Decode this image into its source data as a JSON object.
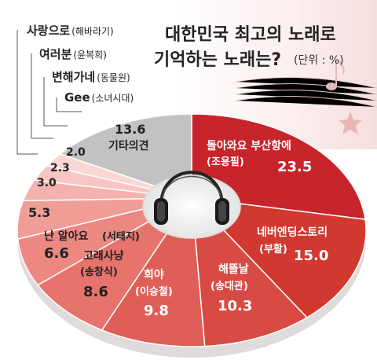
{
  "header": {
    "title_line1": "대한민국 최고의 노래로",
    "title_line2": "기억하는 노래는?",
    "unit": "(단위 : %)"
  },
  "chart_data": {
    "type": "pie",
    "title": "대한민국 최고의 노래로 기억하는 노래는?",
    "unit": "%",
    "slices": [
      {
        "name": "돌아와요 부산항에",
        "artist": "(조용필)",
        "value": 23.5,
        "color": "#c8242b"
      },
      {
        "name": "네버엔딩스토리",
        "artist": "(부활)",
        "value": 15.0,
        "color": "#d03830"
      },
      {
        "name": "해뜰날",
        "artist": "(송대관)",
        "value": 10.3,
        "color": "#d84b44"
      },
      {
        "name": "희야",
        "artist": "(이승철)",
        "value": 9.8,
        "color": "#df5e57"
      },
      {
        "name": "고래사냥",
        "artist": "(송창식)",
        "value": 8.6,
        "color": "#e6736c"
      },
      {
        "name": "난 알아요",
        "artist": "(서태지)",
        "value": 6.6,
        "color": "#ec8882"
      },
      {
        "name": "",
        "artist": "",
        "value": 5.3,
        "color": "#f09d98"
      },
      {
        "name": "Gee",
        "artist": "(소녀시대)",
        "value": 3.0,
        "color": "#f4b2ae"
      },
      {
        "name": "변해가네",
        "artist": "(동물원)",
        "value": 2.3,
        "color": "#f7c6c3"
      },
      {
        "name": "여러분",
        "artist": "(윤복희)",
        "value": 2.0,
        "color": "#f9d7d5"
      },
      {
        "name": "사랑으로",
        "artist": "(해바라기)",
        "value": 0.0,
        "color": "#fbe6e5"
      },
      {
        "name": "기타의견",
        "artist": "",
        "value": 13.6,
        "color": "#c2c2c2"
      }
    ]
  }
}
